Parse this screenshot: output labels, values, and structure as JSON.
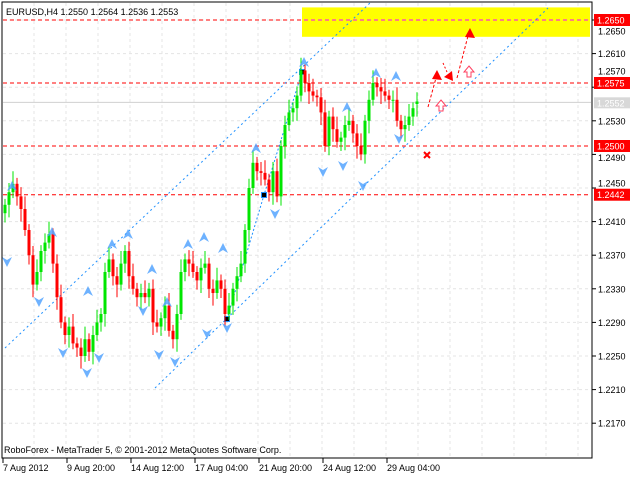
{
  "header": {
    "symbol": "EURUSD,H4",
    "open": "1.2550",
    "high": "1.2564",
    "low": "1.2536",
    "close": "1.2553"
  },
  "footer": {
    "copyright": "RoboForex - MetaTrader 5, © 2001-2012 MetaQuotes Software Corp."
  },
  "colors": {
    "bull": "#00e600",
    "bear": "#ff0000",
    "level": "#ff0000",
    "target_zone": "#ffff00",
    "target_line": "#ff00ff",
    "channel": "#1e90ff",
    "fractal": "#4a9fff",
    "bid_line": "#d0d0d0"
  },
  "chart_data": {
    "type": "candlestick",
    "ylim": [
      1.213,
      1.269
    ],
    "y_ticks": [
      "1.2650",
      "1.2610",
      "1.2570",
      "1.2530",
      "1.2490",
      "1.2450",
      "1.2410",
      "1.2370",
      "1.2330",
      "1.2290",
      "1.2250",
      "1.2210",
      "1.2170"
    ],
    "x_ticks": [
      "7 Aug 2012",
      "9 Aug 20:00",
      "14 Aug 12:00",
      "17 Aug 04:00",
      "21 Aug 20:00",
      "24 Aug 12:00",
      "29 Aug 04:00"
    ],
    "close": [
      1.243,
      1.2445,
      1.2455,
      1.244,
      1.2425,
      1.24,
      1.237,
      1.2335,
      1.235,
      1.2375,
      1.2385,
      1.2395,
      1.236,
      1.232,
      1.229,
      1.2275,
      1.2285,
      1.2265,
      1.226,
      1.225,
      1.227,
      1.2255,
      1.2275,
      1.229,
      1.23,
      1.235,
      1.2365,
      1.2345,
      1.2335,
      1.236,
      1.2375,
      1.2345,
      1.233,
      1.232,
      1.2325,
      1.232,
      1.233,
      1.229,
      1.2285,
      1.2295,
      1.231,
      1.228,
      1.227,
      1.23,
      1.235,
      1.2365,
      1.236,
      1.235,
      1.234,
      1.2355,
      1.236,
      1.233,
      1.2325,
      1.234,
      1.233,
      1.23,
      1.231,
      1.233,
      1.2345,
      1.236,
      1.24,
      1.245,
      1.248,
      1.247,
      1.2468,
      1.246,
      1.2445,
      1.247,
      1.244,
      1.25,
      1.2525,
      1.254,
      1.2545,
      1.256,
      1.259,
      1.2575,
      1.2565,
      1.256,
      1.2558,
      1.254,
      1.25,
      1.2535,
      1.252,
      1.2505,
      1.251,
      1.2525,
      1.253,
      1.2515,
      1.25,
      1.249,
      1.253,
      1.2555,
      1.2575,
      1.257,
      1.2565,
      1.256,
      1.2555,
      1.2555,
      1.253,
      1.252,
      1.2525,
      1.2535,
      1.2545,
      1.2553
    ],
    "levels": [
      {
        "label": "1.2650",
        "value": 1.265,
        "style": "target"
      },
      {
        "label": "1.2575",
        "value": 1.2575,
        "style": "resistance"
      },
      {
        "label": "1.2500",
        "value": 1.25,
        "style": "support"
      },
      {
        "label": "1.2442",
        "value": 1.2442,
        "style": "support"
      }
    ],
    "bid": {
      "label": "1.2552",
      "value": 1.2552
    },
    "target_zone": [
      1.263,
      1.2665
    ]
  }
}
